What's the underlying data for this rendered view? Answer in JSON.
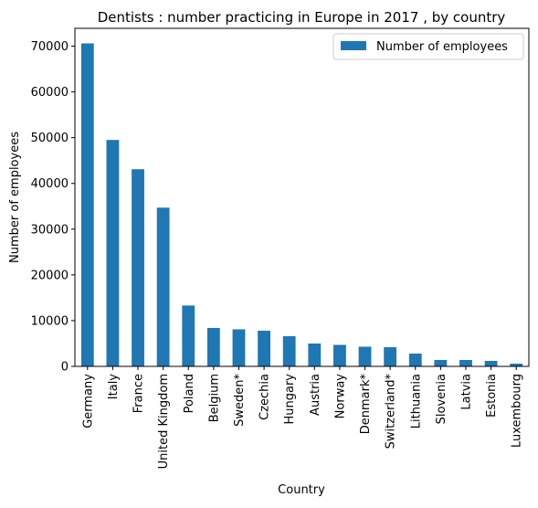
{
  "chart_data": {
    "type": "bar",
    "title": "Dentists : number practicing in Europe in 2017 , by country",
    "xlabel": "Country",
    "ylabel": "Number of employees",
    "categories": [
      "Germany",
      "Italy",
      "France",
      "United Kingdom",
      "Poland",
      "Belgium",
      "Sweden*",
      "Czechia",
      "Hungary",
      "Austria",
      "Norway",
      "Denmark*",
      "Switzerland*",
      "Lithuania",
      "Slovenia",
      "Latvia",
      "Estonia",
      "Luxembourg"
    ],
    "series": [
      {
        "name": "Number of employees",
        "color": "#1f77b4",
        "values": [
          70600,
          49500,
          43100,
          34700,
          13300,
          8400,
          8100,
          7800,
          6600,
          5000,
          4700,
          4300,
          4200,
          2800,
          1400,
          1400,
          1200,
          600
        ]
      }
    ],
    "ylim": [
      0,
      73900
    ],
    "yticks": [
      0,
      10000,
      20000,
      30000,
      40000,
      50000,
      60000,
      70000
    ],
    "grid": false,
    "legend_position": "top-right"
  }
}
